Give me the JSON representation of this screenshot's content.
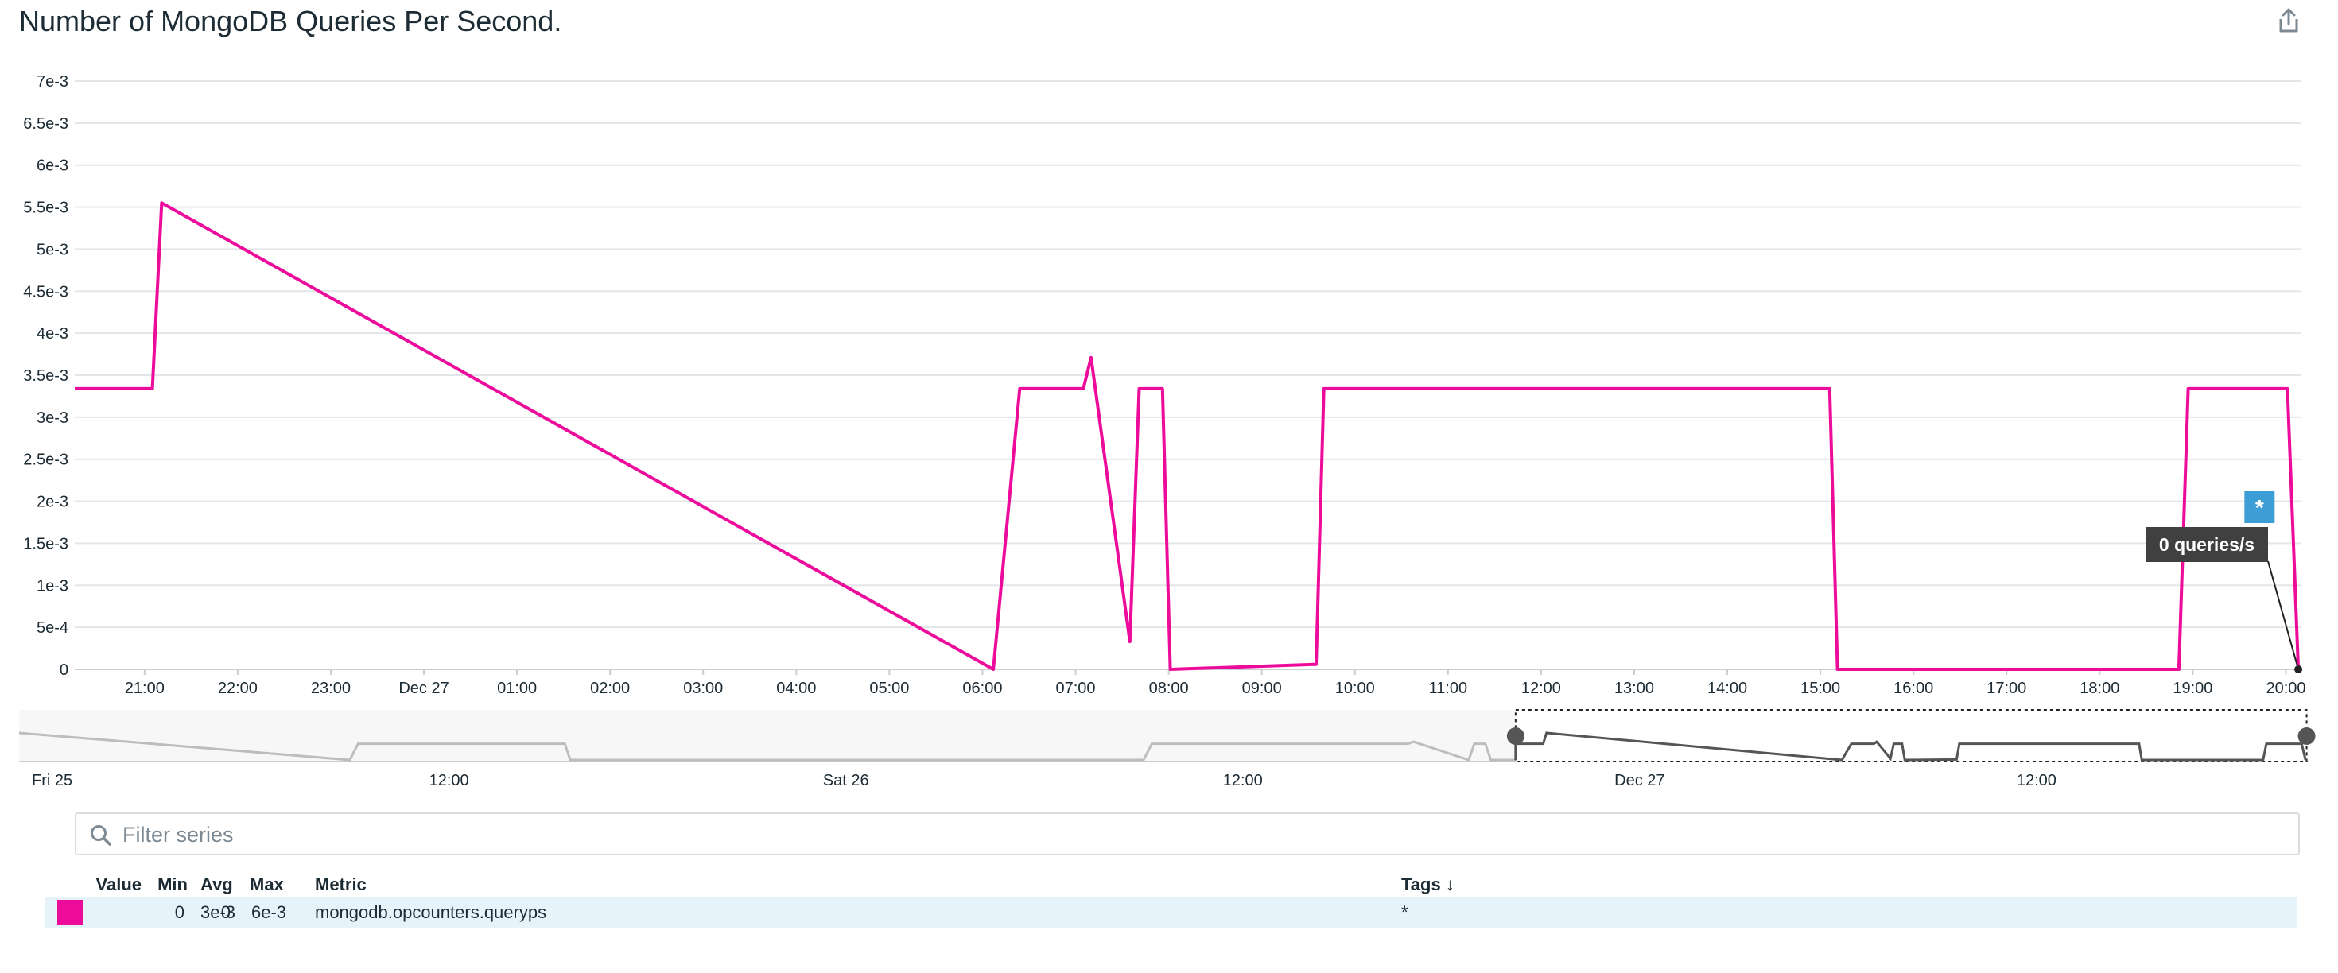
{
  "widget": {
    "title": "Number of MongoDB Queries Per Second.",
    "share_icon": "share-icon"
  },
  "colors": {
    "series": "#ec0b9b",
    "grid": "#e3e6e9",
    "overview_line": "#bdbdbd",
    "overview_selected_line": "#555555",
    "tooltip_bg": "#404040",
    "marker": "#3c9ed4",
    "legend_row_bg": "#e7f3fb"
  },
  "chart_data": {
    "type": "line",
    "ylim": [
      0,
      0.007
    ],
    "y_ticks": [
      {
        "value": 0,
        "label": "0"
      },
      {
        "value": 0.0005,
        "label": "5e-4"
      },
      {
        "value": 0.001,
        "label": "1e-3"
      },
      {
        "value": 0.0015,
        "label": "1.5e-3"
      },
      {
        "value": 0.002,
        "label": "2e-3"
      },
      {
        "value": 0.0025,
        "label": "2.5e-3"
      },
      {
        "value": 0.003,
        "label": "3e-3"
      },
      {
        "value": 0.0035,
        "label": "3.5e-3"
      },
      {
        "value": 0.004,
        "label": "4e-3"
      },
      {
        "value": 0.0045,
        "label": "4.5e-3"
      },
      {
        "value": 0.005,
        "label": "5e-3"
      },
      {
        "value": 0.0055,
        "label": "5.5e-3"
      },
      {
        "value": 0.006,
        "label": "6e-3"
      },
      {
        "value": 0.0065,
        "label": "6.5e-3"
      },
      {
        "value": 0.007,
        "label": "7e-3"
      }
    ],
    "xlim": [
      "Dec 26 20:15",
      "Dec 27 20:10"
    ],
    "x_ticks": [
      {
        "time": "Dec 26 21:00",
        "label": "21:00"
      },
      {
        "time": "Dec 26 22:00",
        "label": "22:00"
      },
      {
        "time": "Dec 26 23:00",
        "label": "23:00"
      },
      {
        "time": "Dec 27 00:00",
        "label": "Dec 27"
      },
      {
        "time": "Dec 27 01:00",
        "label": "01:00"
      },
      {
        "time": "Dec 27 02:00",
        "label": "02:00"
      },
      {
        "time": "Dec 27 03:00",
        "label": "03:00"
      },
      {
        "time": "Dec 27 04:00",
        "label": "04:00"
      },
      {
        "time": "Dec 27 05:00",
        "label": "05:00"
      },
      {
        "time": "Dec 27 06:00",
        "label": "06:00"
      },
      {
        "time": "Dec 27 07:00",
        "label": "07:00"
      },
      {
        "time": "Dec 27 08:00",
        "label": "08:00"
      },
      {
        "time": "Dec 27 09:00",
        "label": "09:00"
      },
      {
        "time": "Dec 27 10:00",
        "label": "10:00"
      },
      {
        "time": "Dec 27 11:00",
        "label": "11:00"
      },
      {
        "time": "Dec 27 12:00",
        "label": "12:00"
      },
      {
        "time": "Dec 27 13:00",
        "label": "13:00"
      },
      {
        "time": "Dec 27 14:00",
        "label": "14:00"
      },
      {
        "time": "Dec 27 15:00",
        "label": "15:00"
      },
      {
        "time": "Dec 27 16:00",
        "label": "16:00"
      },
      {
        "time": "Dec 27 17:00",
        "label": "17:00"
      },
      {
        "time": "Dec 27 18:00",
        "label": "18:00"
      },
      {
        "time": "Dec 27 19:00",
        "label": "19:00"
      },
      {
        "time": "Dec 27 20:00",
        "label": "20:00"
      }
    ],
    "series": [
      {
        "metric": "mongodb.opcounters.queryps",
        "points": [
          [
            "Dec 26 20:15",
            0.00334
          ],
          [
            "Dec 26 21:05",
            0.00334
          ],
          [
            "Dec 26 21:11",
            0.00555
          ],
          [
            "Dec 27 06:07",
            0.0
          ],
          [
            "Dec 27 06:24",
            0.00334
          ],
          [
            "Dec 27 07:05",
            0.00334
          ],
          [
            "Dec 27 07:10",
            0.00371
          ],
          [
            "Dec 27 07:35",
            0.00033
          ],
          [
            "Dec 27 07:41",
            0.00334
          ],
          [
            "Dec 27 07:56",
            0.00334
          ],
          [
            "Dec 27 08:01",
            0.0
          ],
          [
            "Dec 27 09:35",
            6e-05
          ],
          [
            "Dec 27 09:40",
            0.00334
          ],
          [
            "Dec 27 15:06",
            0.00334
          ],
          [
            "Dec 27 15:11",
            0.0
          ],
          [
            "Dec 27 18:51",
            0.0
          ],
          [
            "Dec 27 18:57",
            0.00334
          ],
          [
            "Dec 27 19:50",
            0.00334
          ],
          [
            "Dec 27 20:01",
            0.00334
          ],
          [
            "Dec 27 20:08",
            0.0
          ]
        ]
      }
    ],
    "tooltip": {
      "time": "Dec 27 20:08",
      "value": 0,
      "label": "0 queries/s"
    },
    "event_marker": {
      "time": "Dec 27 19:43",
      "label": "*"
    }
  },
  "overview": {
    "xlim": [
      "Dec 24 23:00",
      "Dec 27 20:15"
    ],
    "x_ticks": [
      {
        "time": "Dec 25 00:00",
        "label": "Fri 25"
      },
      {
        "time": "Dec 25 12:00",
        "label": "12:00"
      },
      {
        "time": "Dec 26 00:00",
        "label": "Sat 26"
      },
      {
        "time": "Dec 26 12:00",
        "label": "12:00"
      },
      {
        "time": "Dec 27 00:00",
        "label": "Dec 27"
      },
      {
        "time": "Dec 27 12:00",
        "label": "12:00"
      }
    ],
    "selection": [
      "Dec 26 20:15",
      "Dec 27 20:10"
    ],
    "points": [
      [
        "Dec 24 23:00",
        0.0055
      ],
      [
        "Dec 25 09:00",
        0.0
      ],
      [
        "Dec 25 09:15",
        0.0033
      ],
      [
        "Dec 25 15:30",
        0.0033
      ],
      [
        "Dec 25 15:40",
        0.0
      ],
      [
        "Dec 26 09:00",
        0.0
      ],
      [
        "Dec 26 09:15",
        0.0033
      ],
      [
        "Dec 26 17:00",
        0.0033
      ],
      [
        "Dec 26 17:10",
        0.0037
      ],
      [
        "Dec 26 18:50",
        0.0
      ],
      [
        "Dec 26 19:00",
        0.0033
      ],
      [
        "Dec 26 19:20",
        0.0033
      ],
      [
        "Dec 26 19:30",
        0.0
      ],
      [
        "Dec 26 20:15",
        0.0
      ],
      [
        "Dec 26 20:15",
        0.0033
      ],
      [
        "Dec 26 21:05",
        0.0033
      ],
      [
        "Dec 26 21:11",
        0.0055
      ],
      [
        "Dec 27 06:07",
        0.0
      ],
      [
        "Dec 27 06:24",
        0.0033
      ],
      [
        "Dec 27 07:05",
        0.0033
      ],
      [
        "Dec 27 07:10",
        0.0037
      ],
      [
        "Dec 27 07:35",
        0.0003
      ],
      [
        "Dec 27 07:41",
        0.0033
      ],
      [
        "Dec 27 07:56",
        0.0033
      ],
      [
        "Dec 27 08:01",
        0.0
      ],
      [
        "Dec 27 09:35",
        0.0001
      ],
      [
        "Dec 27 09:40",
        0.0033
      ],
      [
        "Dec 27 15:06",
        0.0033
      ],
      [
        "Dec 27 15:11",
        0.0
      ],
      [
        "Dec 27 18:51",
        0.0
      ],
      [
        "Dec 27 18:57",
        0.0033
      ],
      [
        "Dec 27 20:01",
        0.0033
      ],
      [
        "Dec 27 20:08",
        0.0
      ]
    ]
  },
  "filter": {
    "placeholder": "Filter series",
    "search_icon": "search-icon"
  },
  "legend": {
    "headers": {
      "value": "Value",
      "min": "Min",
      "avg": "Avg",
      "max": "Max",
      "metric": "Metric",
      "tags": "Tags ↓"
    },
    "rows": [
      {
        "value": "0",
        "min": "0",
        "avg": "3e-3",
        "max": "6e-3",
        "metric": "mongodb.opcounters.queryps",
        "tags": "*",
        "color": "#ec0b9b"
      }
    ]
  }
}
